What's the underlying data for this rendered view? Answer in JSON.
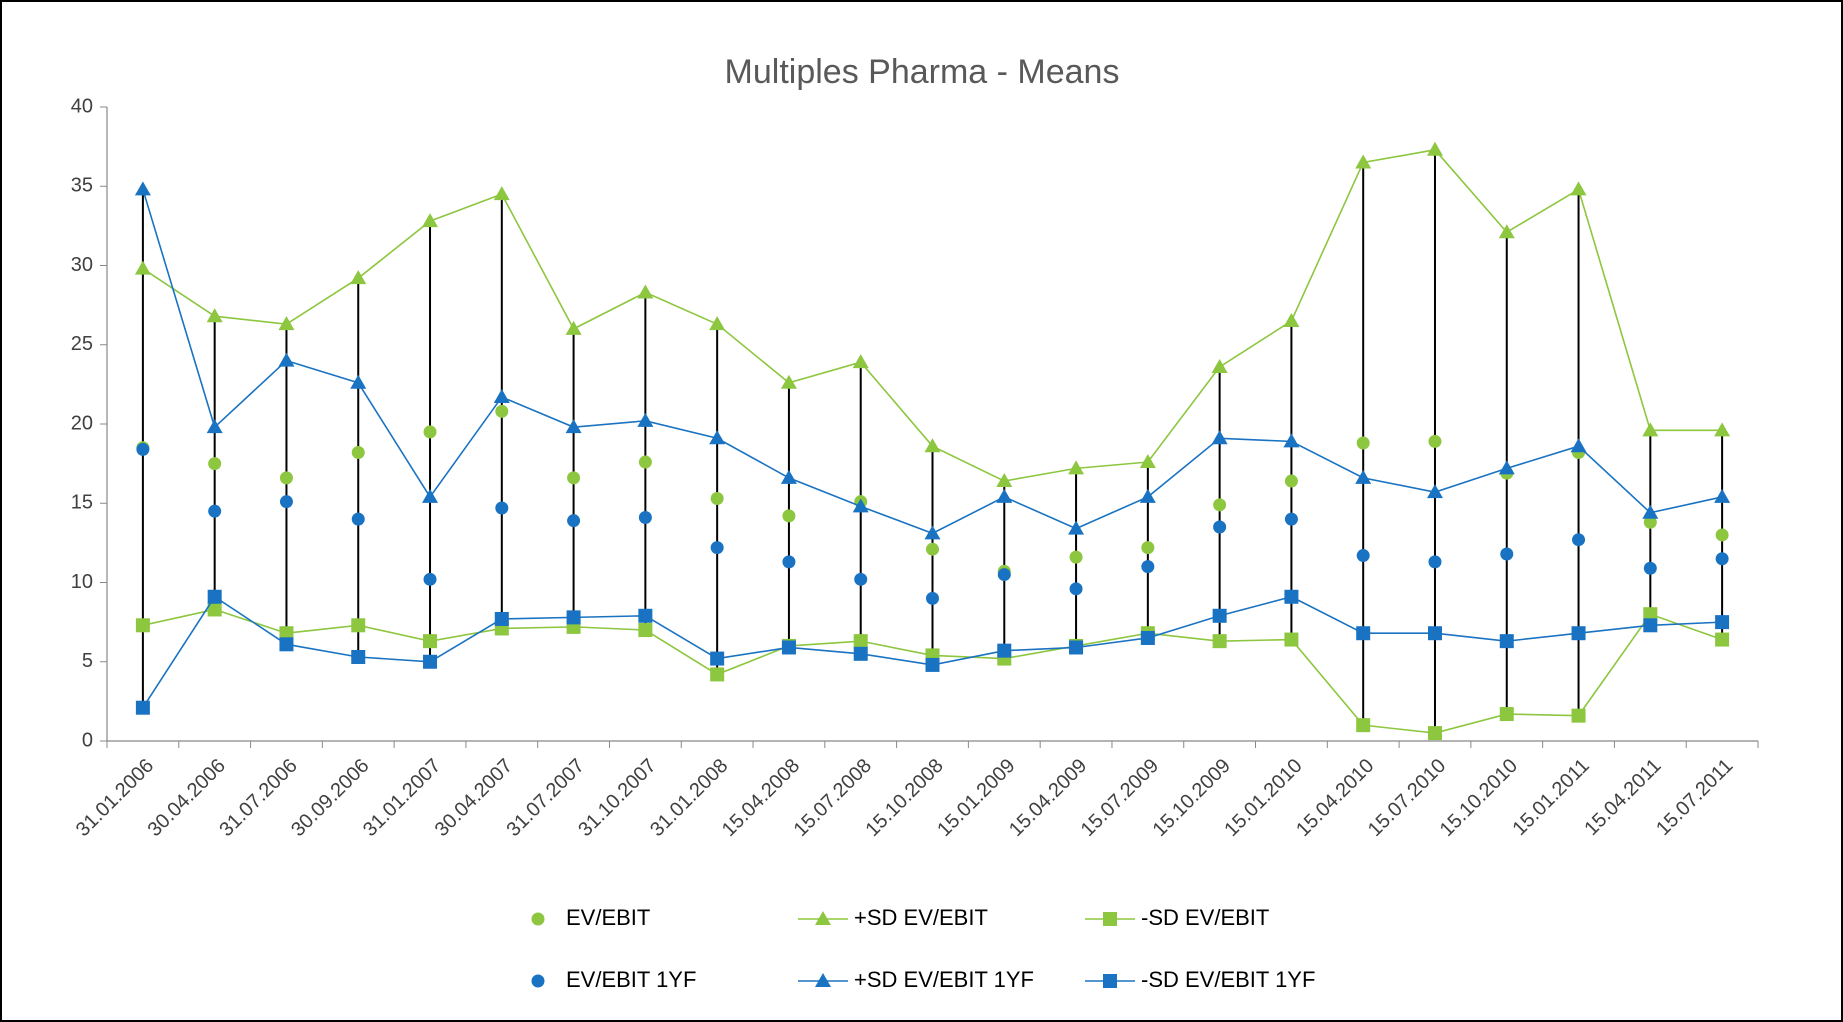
{
  "chart_data": {
    "type": "line",
    "title": "Multiples Pharma - Means",
    "categories": [
      "31.01.2006",
      "30.04.2006",
      "31.07.2006",
      "30.09.2006",
      "31.01.2007",
      "30.04.2007",
      "31.07.2007",
      "31.10.2007",
      "31.01.2008",
      "15.04.2008",
      "15.07.2008",
      "15.10.2008",
      "15.01.2009",
      "15.04.2009",
      "15.07.2009",
      "15.10.2009",
      "15.01.2010",
      "15.04.2010",
      "15.07.2010",
      "15.10.2010",
      "15.01.2011",
      "15.04.2011",
      "15.07.2011"
    ],
    "series": [
      {
        "name": "EV/EBIT",
        "color": "#8dc63f",
        "marker": "circle",
        "line": false,
        "values": [
          18.5,
          17.5,
          16.6,
          18.2,
          19.5,
          20.8,
          16.6,
          17.6,
          15.3,
          14.2,
          15.1,
          12.1,
          10.7,
          11.6,
          12.2,
          14.9,
          16.4,
          18.8,
          18.9,
          16.9,
          18.2,
          13.8,
          13.0
        ]
      },
      {
        "name": "+SD EV/EBIT",
        "color": "#8dc63f",
        "marker": "triangle",
        "line": true,
        "values": [
          29.8,
          26.8,
          26.3,
          29.2,
          32.8,
          34.5,
          26.0,
          28.3,
          26.3,
          22.6,
          23.9,
          18.6,
          16.4,
          17.2,
          17.6,
          23.6,
          26.5,
          36.5,
          37.3,
          32.1,
          34.8,
          19.6,
          19.6
        ]
      },
      {
        "name": "-SD EV/EBIT",
        "color": "#8dc63f",
        "marker": "square",
        "line": true,
        "values": [
          7.3,
          8.3,
          6.8,
          7.3,
          6.3,
          7.1,
          7.2,
          7.0,
          4.2,
          6.0,
          6.3,
          5.4,
          5.2,
          6.0,
          6.8,
          6.3,
          6.4,
          1.0,
          0.5,
          1.7,
          1.6,
          8.0,
          6.4
        ]
      },
      {
        "name": "EV/EBIT 1YF",
        "color": "#1a73c2",
        "marker": "circle",
        "line": false,
        "values": [
          18.4,
          14.5,
          15.1,
          14.0,
          10.2,
          14.7,
          13.9,
          14.1,
          12.2,
          11.3,
          10.2,
          9.0,
          10.5,
          9.6,
          11.0,
          13.5,
          14.0,
          11.7,
          11.3,
          11.8,
          12.7,
          10.9,
          11.5
        ]
      },
      {
        "name": "+SD EV/EBIT 1YF",
        "color": "#1a73c2",
        "marker": "triangle",
        "line": true,
        "values": [
          34.8,
          19.8,
          24.0,
          22.6,
          15.4,
          21.7,
          19.8,
          20.2,
          19.1,
          16.6,
          14.8,
          13.1,
          15.4,
          13.4,
          15.4,
          19.1,
          18.9,
          16.6,
          15.7,
          17.2,
          18.6,
          14.4,
          15.4
        ]
      },
      {
        "name": "-SD EV/EBIT 1YF",
        "color": "#1a73c2",
        "marker": "square",
        "line": true,
        "values": [
          2.1,
          9.1,
          6.1,
          5.3,
          5.0,
          7.7,
          7.8,
          7.9,
          5.2,
          5.9,
          5.5,
          4.8,
          5.7,
          5.9,
          6.5,
          7.9,
          9.1,
          6.8,
          6.8,
          6.3,
          6.8,
          7.3,
          7.5
        ]
      }
    ],
    "high_low_lines": true,
    "ylim": [
      0,
      40
    ],
    "yticks": [
      0,
      5,
      10,
      15,
      20,
      25,
      30,
      35,
      40
    ],
    "grid": false
  }
}
